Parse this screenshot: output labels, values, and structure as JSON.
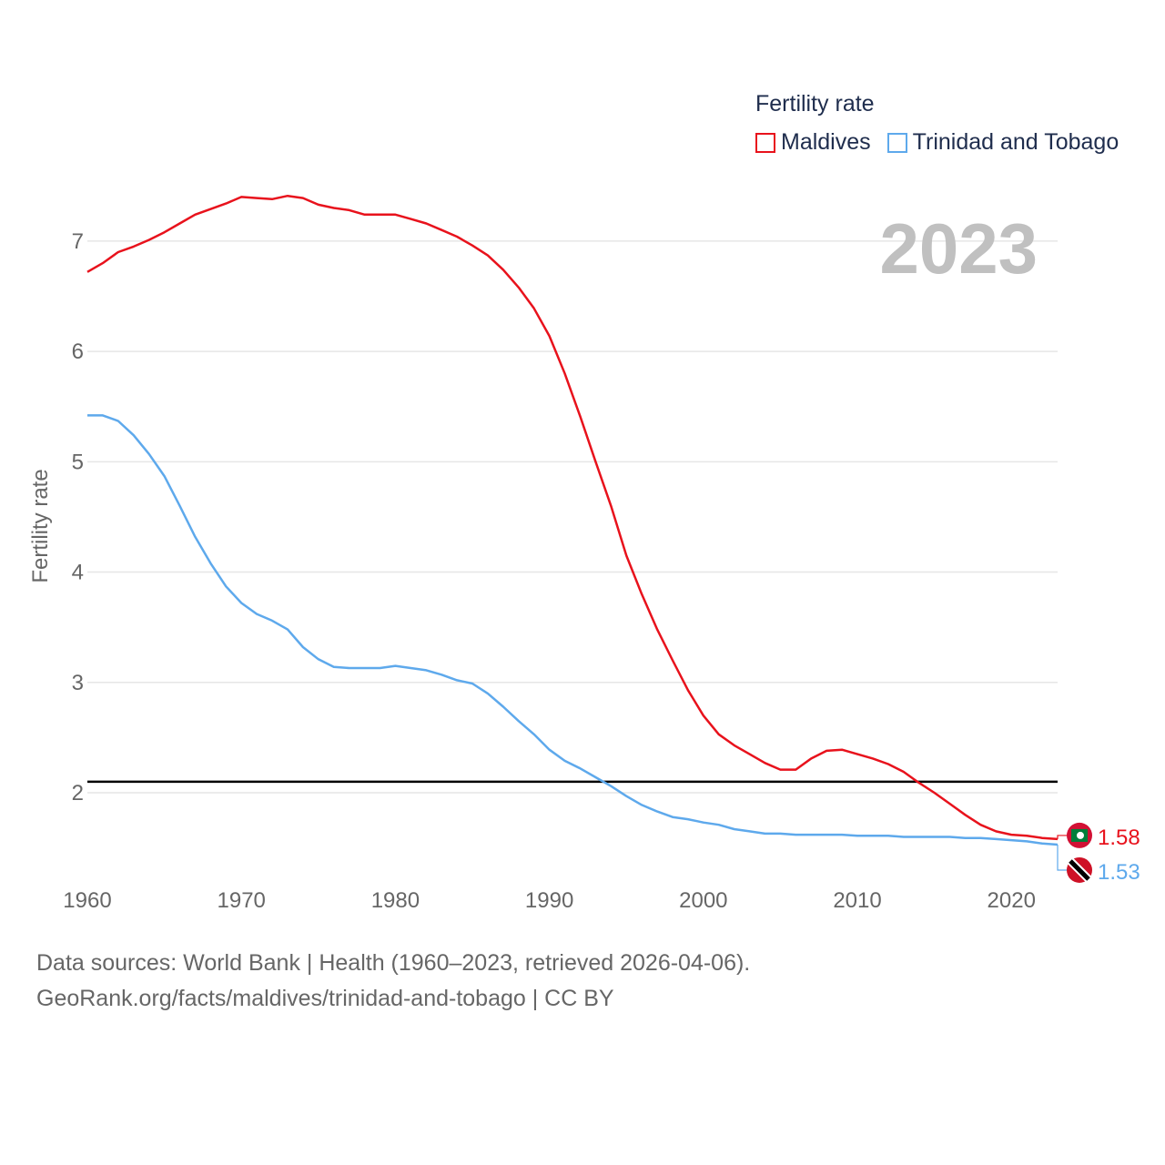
{
  "colors": {
    "maldives": "#e8121c",
    "trinidad": "#5ea9ec",
    "grid": "#e6e6e6",
    "reference_line": "#000000"
  },
  "legend": {
    "title": "Fertility rate",
    "items": [
      {
        "label": "Maldives",
        "color": "#e8121c"
      },
      {
        "label": "Trinidad and Tobago",
        "color": "#5ea9ec"
      }
    ]
  },
  "current_year": "2023",
  "footer": {
    "line1": "Data sources: World Bank | Health (1960–2023, retrieved 2026-04-06).",
    "line2": "GeoRank.org/facts/maldives/trinidad-and-tobago | CC BY"
  },
  "chart_data": {
    "type": "line",
    "title": "Fertility rate",
    "xlabel": "",
    "ylabel": "Fertility rate",
    "xlim": [
      1960,
      2023
    ],
    "ylim": [
      1.2,
      7.7
    ],
    "xticks": [
      1960,
      1970,
      1980,
      1990,
      2000,
      2010,
      2020
    ],
    "yticks": [
      2,
      3,
      4,
      5,
      6,
      7
    ],
    "grid": true,
    "reference_line": 2.1,
    "x": [
      1960,
      1961,
      1962,
      1963,
      1964,
      1965,
      1966,
      1967,
      1968,
      1969,
      1970,
      1971,
      1972,
      1973,
      1974,
      1975,
      1976,
      1977,
      1978,
      1979,
      1980,
      1981,
      1982,
      1983,
      1984,
      1985,
      1986,
      1987,
      1988,
      1989,
      1990,
      1991,
      1992,
      1993,
      1994,
      1995,
      1996,
      1997,
      1998,
      1999,
      2000,
      2001,
      2002,
      2003,
      2004,
      2005,
      2006,
      2007,
      2008,
      2009,
      2010,
      2011,
      2012,
      2013,
      2014,
      2015,
      2016,
      2017,
      2018,
      2019,
      2020,
      2021,
      2022,
      2023
    ],
    "series": [
      {
        "name": "Maldives",
        "end_label": "1.58",
        "values": [
          6.72,
          6.8,
          6.9,
          6.95,
          7.01,
          7.08,
          7.16,
          7.24,
          7.29,
          7.34,
          7.4,
          7.39,
          7.38,
          7.41,
          7.39,
          7.33,
          7.3,
          7.28,
          7.24,
          7.24,
          7.24,
          7.2,
          7.16,
          7.1,
          7.04,
          6.96,
          6.87,
          6.74,
          6.58,
          6.39,
          6.14,
          5.8,
          5.41,
          5.0,
          4.6,
          4.15,
          3.8,
          3.48,
          3.2,
          2.93,
          2.7,
          2.53,
          2.43,
          2.35,
          2.27,
          2.21,
          2.21,
          2.31,
          2.38,
          2.39,
          2.35,
          2.31,
          2.26,
          2.19,
          2.09,
          2.0,
          1.9,
          1.8,
          1.71,
          1.65,
          1.62,
          1.61,
          1.59,
          1.58
        ]
      },
      {
        "name": "Trinidad and Tobago",
        "end_label": "1.53",
        "values": [
          5.42,
          5.42,
          5.37,
          5.24,
          5.07,
          4.87,
          4.6,
          4.32,
          4.08,
          3.87,
          3.72,
          3.62,
          3.56,
          3.48,
          3.32,
          3.21,
          3.14,
          3.13,
          3.13,
          3.13,
          3.15,
          3.13,
          3.11,
          3.07,
          3.02,
          2.99,
          2.9,
          2.78,
          2.65,
          2.53,
          2.39,
          2.29,
          2.22,
          2.14,
          2.06,
          1.97,
          1.89,
          1.83,
          1.78,
          1.76,
          1.73,
          1.71,
          1.67,
          1.65,
          1.63,
          1.63,
          1.62,
          1.62,
          1.62,
          1.62,
          1.61,
          1.61,
          1.61,
          1.6,
          1.6,
          1.6,
          1.6,
          1.59,
          1.59,
          1.58,
          1.57,
          1.56,
          1.54,
          1.53
        ]
      }
    ]
  }
}
